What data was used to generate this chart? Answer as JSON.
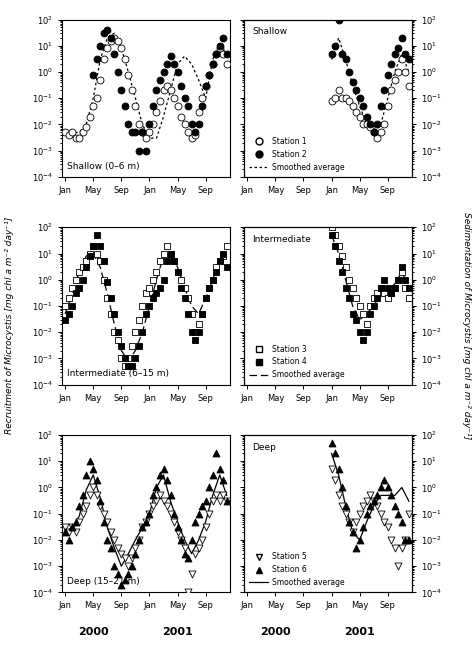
{
  "title": "",
  "left_ylabel": "Recruitment of Microcystis [mg chl a m-2 day-1]",
  "right_ylabel": "Sedimentation of Microcystis [mg chl a m-2 day-1]",
  "panels": [
    {
      "title": "Shallow (0–6 m)",
      "pos": "top-left",
      "station1_label": "Station 1",
      "station2_label": "Station 2",
      "line_label": "Smoothed average",
      "line_style": "dotted",
      "ylim": [
        0.0001,
        100.0
      ],
      "station1_x": [
        1,
        1.5,
        2,
        2.5,
        3,
        3.5,
        4,
        4.5,
        5,
        5.5,
        6,
        6.5,
        7,
        7.5,
        8,
        8.5,
        9,
        9.5,
        10,
        10.5,
        11,
        11.5,
        12,
        12.5,
        13,
        13.5,
        14,
        14.5,
        15,
        15.5,
        16,
        16.5,
        17,
        17.5,
        18,
        18.5,
        19,
        19.5,
        20,
        20.5,
        21,
        21.5,
        22,
        22.5,
        23,
        23.5,
        24
      ],
      "station1_y": [
        0.005,
        0.004,
        0.005,
        0.003,
        0.003,
        0.005,
        0.008,
        0.02,
        0.05,
        0.1,
        0.5,
        3.0,
        8.0,
        15.0,
        20.0,
        15.0,
        8.0,
        3.0,
        0.8,
        0.2,
        0.05,
        0.01,
        0.005,
        0.003,
        0.005,
        0.01,
        0.03,
        0.08,
        0.2,
        0.3,
        0.2,
        0.1,
        0.05,
        0.02,
        0.01,
        0.005,
        0.003,
        0.004,
        0.03,
        0.1,
        0.3,
        0.8,
        2.0,
        5.0,
        8.0,
        5.0,
        2.0
      ],
      "station2_x": [
        5,
        5.5,
        6,
        6.5,
        7,
        7.5,
        8,
        8.5,
        9,
        9.5,
        10,
        10.5,
        11,
        11.5,
        12,
        12.5,
        13,
        13.5,
        14,
        14.5,
        15,
        15.5,
        16,
        16.5,
        17,
        17.5,
        18,
        18.5,
        19,
        19.5,
        20,
        20.5,
        21,
        21.5,
        22,
        22.5,
        23,
        23.5,
        24
      ],
      "station2_y": [
        0.8,
        3.0,
        10.0,
        30.0,
        40.0,
        20.0,
        5.0,
        1.0,
        0.2,
        0.05,
        0.01,
        0.005,
        0.005,
        0.001,
        0.005,
        0.001,
        0.01,
        0.05,
        0.2,
        0.5,
        1.0,
        2.0,
        4.0,
        2.0,
        1.0,
        0.3,
        0.1,
        0.05,
        0.01,
        0.005,
        0.01,
        0.05,
        0.3,
        0.8,
        2.0,
        5.0,
        10.0,
        20.0,
        5.0
      ],
      "smooth_x": [
        1,
        2,
        3,
        4,
        5,
        6,
        7,
        8,
        9,
        10,
        11,
        12,
        13,
        14,
        15,
        16,
        17,
        18,
        19,
        20,
        21,
        22,
        23,
        24
      ],
      "smooth_y": [
        0.005,
        0.005,
        0.005,
        0.01,
        0.1,
        3.0,
        20.0,
        30.0,
        8.0,
        1.0,
        0.1,
        0.01,
        0.003,
        0.003,
        0.02,
        0.2,
        2.0,
        4.0,
        2.0,
        0.5,
        0.1,
        3.0,
        10.0,
        5.0
      ]
    },
    {
      "title": "Shallow",
      "pos": "top-right",
      "station1_label": "Station 1",
      "station2_label": "Station 2",
      "line_label": "Smoothed average",
      "line_style": "dotted",
      "ylim": [
        0.0001,
        100.0
      ],
      "station1_x": [
        13,
        13.5,
        14,
        14.5,
        15,
        15.5,
        16,
        16.5,
        17,
        17.5,
        18,
        18.5,
        19,
        19.5,
        20,
        20.5,
        21,
        21.5,
        22,
        22.5,
        23,
        23.5,
        24
      ],
      "station1_y": [
        0.08,
        0.1,
        0.2,
        0.1,
        0.1,
        0.08,
        0.05,
        0.03,
        0.02,
        0.01,
        0.01,
        0.008,
        0.005,
        0.003,
        0.005,
        0.01,
        0.05,
        0.2,
        0.5,
        1.0,
        3.0,
        1.0,
        0.3
      ],
      "station2_x": [
        13,
        13.5,
        14,
        14.5,
        15,
        15.5,
        16,
        16.5,
        17,
        17.5,
        18,
        18.5,
        19,
        19.5,
        20,
        20.5,
        21,
        21.5,
        22,
        22.5,
        23,
        23.5,
        24
      ],
      "station2_y": [
        5.0,
        10.0,
        100.0,
        5.0,
        3.0,
        1.0,
        0.4,
        0.2,
        0.1,
        0.05,
        0.02,
        0.01,
        0.005,
        0.01,
        0.05,
        0.2,
        0.8,
        2.0,
        5.0,
        8.0,
        20.0,
        5.0,
        3.0
      ],
      "smooth_x": [
        13,
        14,
        15,
        16,
        17,
        18,
        19,
        20,
        21,
        22,
        23,
        24
      ],
      "smooth_y": [
        3.0,
        20.0,
        3.0,
        0.3,
        0.05,
        0.01,
        0.005,
        0.01,
        0.1,
        1.0,
        5.0,
        1.0
      ]
    },
    {
      "title": "Intermediate (6–15 m)",
      "pos": "mid-left",
      "station3_label": "Station 3",
      "station4_label": "Station 4",
      "line_label": "Smoothed average",
      "line_style": "dashed",
      "ylim": [
        0.0001,
        100.0
      ],
      "station3_x": [
        1,
        1.5,
        2,
        2.5,
        3,
        3.5,
        4,
        4.5,
        5,
        5.5,
        6,
        6.5,
        7,
        7.5,
        8,
        8.5,
        9,
        9.5,
        10,
        10.5,
        11,
        11.5,
        12,
        12.5,
        13,
        13.5,
        14,
        14.5,
        15,
        15.5,
        16,
        16.5,
        17,
        17.5,
        18,
        18.5,
        19,
        19.5,
        20,
        20.5,
        21,
        21.5,
        22,
        22.5,
        23,
        23.5,
        24
      ],
      "station3_y": [
        0.1,
        0.2,
        0.5,
        1.0,
        2.0,
        3.0,
        5.0,
        10.0,
        20.0,
        10.0,
        5.0,
        1.0,
        0.2,
        0.05,
        0.01,
        0.005,
        0.001,
        0.0005,
        0.001,
        0.003,
        0.01,
        0.03,
        0.1,
        0.3,
        0.5,
        1.0,
        2.0,
        5.0,
        10.0,
        20.0,
        10.0,
        5.0,
        2.0,
        1.0,
        0.5,
        0.2,
        0.05,
        0.01,
        0.02,
        0.05,
        0.2,
        0.5,
        1.0,
        3.0,
        5.0,
        8.0,
        20.0
      ],
      "station4_x": [
        1,
        1.5,
        2,
        2.5,
        3,
        3.5,
        4,
        4.5,
        5,
        5.5,
        6,
        6.5,
        7,
        7.5,
        8,
        8.5,
        9,
        9.5,
        10,
        10.5,
        11,
        11.5,
        12,
        12.5,
        13,
        13.5,
        14,
        14.5,
        15,
        15.5,
        16,
        16.5,
        17,
        17.5,
        18,
        18.5,
        19,
        19.5,
        20,
        20.5,
        21,
        21.5,
        22,
        22.5,
        23,
        23.5,
        24
      ],
      "station4_y": [
        0.03,
        0.05,
        0.1,
        0.3,
        0.5,
        1.0,
        3.0,
        8.0,
        20.0,
        50.0,
        20.0,
        5.0,
        0.8,
        0.2,
        0.05,
        0.01,
        0.003,
        0.001,
        0.0005,
        0.0005,
        0.001,
        0.003,
        0.01,
        0.05,
        0.1,
        0.2,
        0.3,
        0.5,
        1.0,
        5.0,
        10.0,
        5.0,
        2.0,
        0.5,
        0.2,
        0.05,
        0.01,
        0.005,
        0.01,
        0.05,
        0.2,
        0.5,
        1.0,
        2.0,
        5.0,
        10.0,
        3.0
      ],
      "smooth_x": [
        1,
        2,
        3,
        4,
        5,
        6,
        7,
        8,
        9,
        10,
        11,
        12,
        13,
        14,
        15,
        16,
        17,
        18,
        19,
        20,
        21,
        22,
        23,
        24
      ],
      "smooth_y": [
        0.05,
        0.3,
        2.0,
        8.0,
        10.0,
        3.0,
        0.3,
        0.02,
        0.002,
        0.0008,
        0.002,
        0.01,
        0.1,
        1.0,
        8.0,
        10.0,
        3.0,
        0.5,
        0.1,
        0.05,
        0.2,
        1.0,
        5.0,
        10.0
      ]
    },
    {
      "title": "Intermediate",
      "pos": "mid-right",
      "station3_label": "Station 3",
      "station4_label": "Station 4",
      "line_label": "Smoothed average",
      "line_style": "dashed",
      "ylim": [
        0.0001,
        100.0
      ],
      "station3_x": [
        13,
        13.5,
        14,
        14.5,
        15,
        15.5,
        16,
        16.5,
        17,
        17.5,
        18,
        18.5,
        19,
        19.5,
        20,
        20.5,
        21,
        21.5,
        22,
        22.5,
        23,
        23.5,
        24
      ],
      "station3_y": [
        100.0,
        50.0,
        20.0,
        8.0,
        3.0,
        1.0,
        0.5,
        0.2,
        0.1,
        0.05,
        0.02,
        0.1,
        0.2,
        0.3,
        0.5,
        0.3,
        0.2,
        0.3,
        0.5,
        1.0,
        2.0,
        0.5,
        0.2
      ],
      "station4_x": [
        13,
        13.5,
        14,
        14.5,
        15,
        15.5,
        16,
        16.5,
        17,
        17.5,
        18,
        18.5,
        19,
        19.5,
        20,
        20.5,
        21,
        21.5,
        22,
        22.5,
        23,
        23.5,
        24
      ],
      "station4_y": [
        50.0,
        20.0,
        5.0,
        2.0,
        0.5,
        0.2,
        0.05,
        0.03,
        0.01,
        0.005,
        0.01,
        0.05,
        0.1,
        0.2,
        0.5,
        1.0,
        0.5,
        0.3,
        0.5,
        1.0,
        3.0,
        1.0,
        0.5
      ],
      "smooth_x": [
        13,
        14,
        15,
        16,
        17,
        18,
        19,
        20,
        21,
        22,
        23,
        24
      ],
      "smooth_y": [
        50.0,
        10.0,
        1.0,
        0.1,
        0.03,
        0.05,
        0.1,
        0.3,
        0.4,
        0.7,
        2.0,
        0.5
      ]
    },
    {
      "title": "Deep (15–21 m)",
      "pos": "bot-left",
      "station5_label": "Station 5",
      "station6_label": "Station 6",
      "line_label": "Smoothed average",
      "line_style": "solid",
      "ylim": [
        0.0001,
        100.0
      ],
      "station5_x": [
        1,
        1.5,
        2,
        2.5,
        3,
        3.5,
        4,
        4.5,
        5,
        5.5,
        6,
        6.5,
        7,
        7.5,
        8,
        8.5,
        9,
        9.5,
        10,
        10.5,
        11,
        11.5,
        12,
        12.5,
        13,
        13.5,
        14,
        14.5,
        15,
        15.5,
        16,
        16.5,
        17,
        17.5,
        18,
        18.5,
        19,
        19.5,
        20,
        20.5,
        21,
        21.5,
        22,
        22.5,
        23,
        23.5,
        24
      ],
      "station5_y": [
        0.03,
        0.02,
        0.03,
        0.02,
        0.05,
        0.1,
        0.2,
        0.5,
        1.0,
        0.5,
        0.2,
        0.1,
        0.05,
        0.02,
        0.01,
        0.005,
        0.003,
        0.002,
        0.001,
        0.002,
        0.005,
        0.01,
        0.03,
        0.05,
        0.1,
        0.2,
        0.3,
        0.5,
        0.3,
        0.2,
        0.1,
        0.05,
        0.02,
        0.01,
        0.005,
        0.0001,
        0.0005,
        0.003,
        0.005,
        0.01,
        0.03,
        0.1,
        0.3,
        0.5,
        0.3,
        0.5,
        0.3
      ],
      "station6_x": [
        1,
        1.5,
        2,
        2.5,
        3,
        3.5,
        4,
        4.5,
        5,
        5.5,
        6,
        6.5,
        7,
        7.5,
        8,
        8.5,
        9,
        9.5,
        10,
        10.5,
        11,
        11.5,
        12,
        12.5,
        13,
        13.5,
        14,
        14.5,
        15,
        15.5,
        16,
        16.5,
        17,
        17.5,
        18,
        18.5,
        19,
        19.5,
        20,
        20.5,
        21,
        21.5,
        22,
        22.5,
        23,
        23.5,
        24
      ],
      "station6_y": [
        0.02,
        0.01,
        0.03,
        0.05,
        0.2,
        0.5,
        3.0,
        10.0,
        5.0,
        2.0,
        0.3,
        0.05,
        0.01,
        0.005,
        0.001,
        0.0005,
        0.0002,
        0.0003,
        0.0005,
        0.001,
        0.003,
        0.01,
        0.03,
        0.05,
        0.1,
        0.5,
        1.0,
        3.0,
        5.0,
        2.0,
        0.5,
        0.1,
        0.03,
        0.01,
        0.003,
        0.002,
        0.01,
        0.05,
        0.1,
        0.2,
        0.3,
        1.0,
        3.0,
        20.0,
        5.0,
        2.0,
        0.3
      ],
      "smooth_x": [
        1,
        2,
        3,
        4,
        5,
        6,
        7,
        8,
        9,
        10,
        11,
        12,
        13,
        14,
        15,
        16,
        17,
        18,
        19,
        20,
        21,
        22,
        23,
        24
      ],
      "smooth_y": [
        0.02,
        0.03,
        0.08,
        0.8,
        3.0,
        0.4,
        0.03,
        0.005,
        0.001,
        0.003,
        0.01,
        0.03,
        0.1,
        1.0,
        3.0,
        0.3,
        0.05,
        0.01,
        0.003,
        0.01,
        0.05,
        0.5,
        3.0,
        0.5
      ]
    },
    {
      "title": "Deep",
      "pos": "bot-right",
      "station5_label": "Station 5",
      "station6_label": "Station 6",
      "line_label": "Smoothed average",
      "line_style": "solid",
      "ylim": [
        0.0001,
        100.0
      ],
      "station5_x": [
        13,
        13.5,
        14,
        14.5,
        15,
        15.5,
        16,
        16.5,
        17,
        17.5,
        18,
        18.5,
        19,
        19.5,
        20,
        20.5,
        21,
        21.5,
        22,
        22.5,
        23,
        23.5,
        24
      ],
      "station5_y": [
        5.0,
        2.0,
        0.5,
        0.2,
        0.1,
        0.05,
        0.02,
        0.05,
        0.1,
        0.2,
        0.3,
        0.5,
        0.3,
        0.2,
        0.1,
        0.05,
        0.03,
        0.01,
        0.005,
        0.001,
        0.005,
        0.01,
        0.1
      ],
      "station6_x": [
        13,
        13.5,
        14,
        14.5,
        15,
        15.5,
        16,
        16.5,
        17,
        17.5,
        18,
        18.5,
        19,
        19.5,
        20,
        20.5,
        21,
        21.5,
        22,
        22.5,
        23,
        23.5,
        24
      ],
      "station6_y": [
        50.0,
        20.0,
        5.0,
        1.0,
        0.2,
        0.05,
        0.02,
        0.005,
        0.01,
        0.03,
        0.1,
        0.2,
        0.3,
        0.5,
        1.0,
        2.0,
        1.0,
        0.5,
        0.2,
        0.1,
        0.05,
        0.01,
        0.01
      ],
      "smooth_x": [
        13,
        14,
        15,
        16,
        17,
        18,
        19,
        20,
        21,
        22,
        23,
        24
      ],
      "smooth_y": [
        20.0,
        3.0,
        0.2,
        0.02,
        0.01,
        0.05,
        0.2,
        0.5,
        0.5,
        0.5,
        1.0,
        0.3
      ]
    }
  ],
  "xtick_positions": [
    1,
    5,
    9,
    13,
    17,
    21
  ],
  "xtick_labels": [
    "Jan",
    "May",
    "Sep",
    "Jan",
    "May",
    "Sep"
  ],
  "xmin": 0.5,
  "xmax": 24.5,
  "marker_size": 5,
  "background_color": "white",
  "figure_facecolor": "white"
}
